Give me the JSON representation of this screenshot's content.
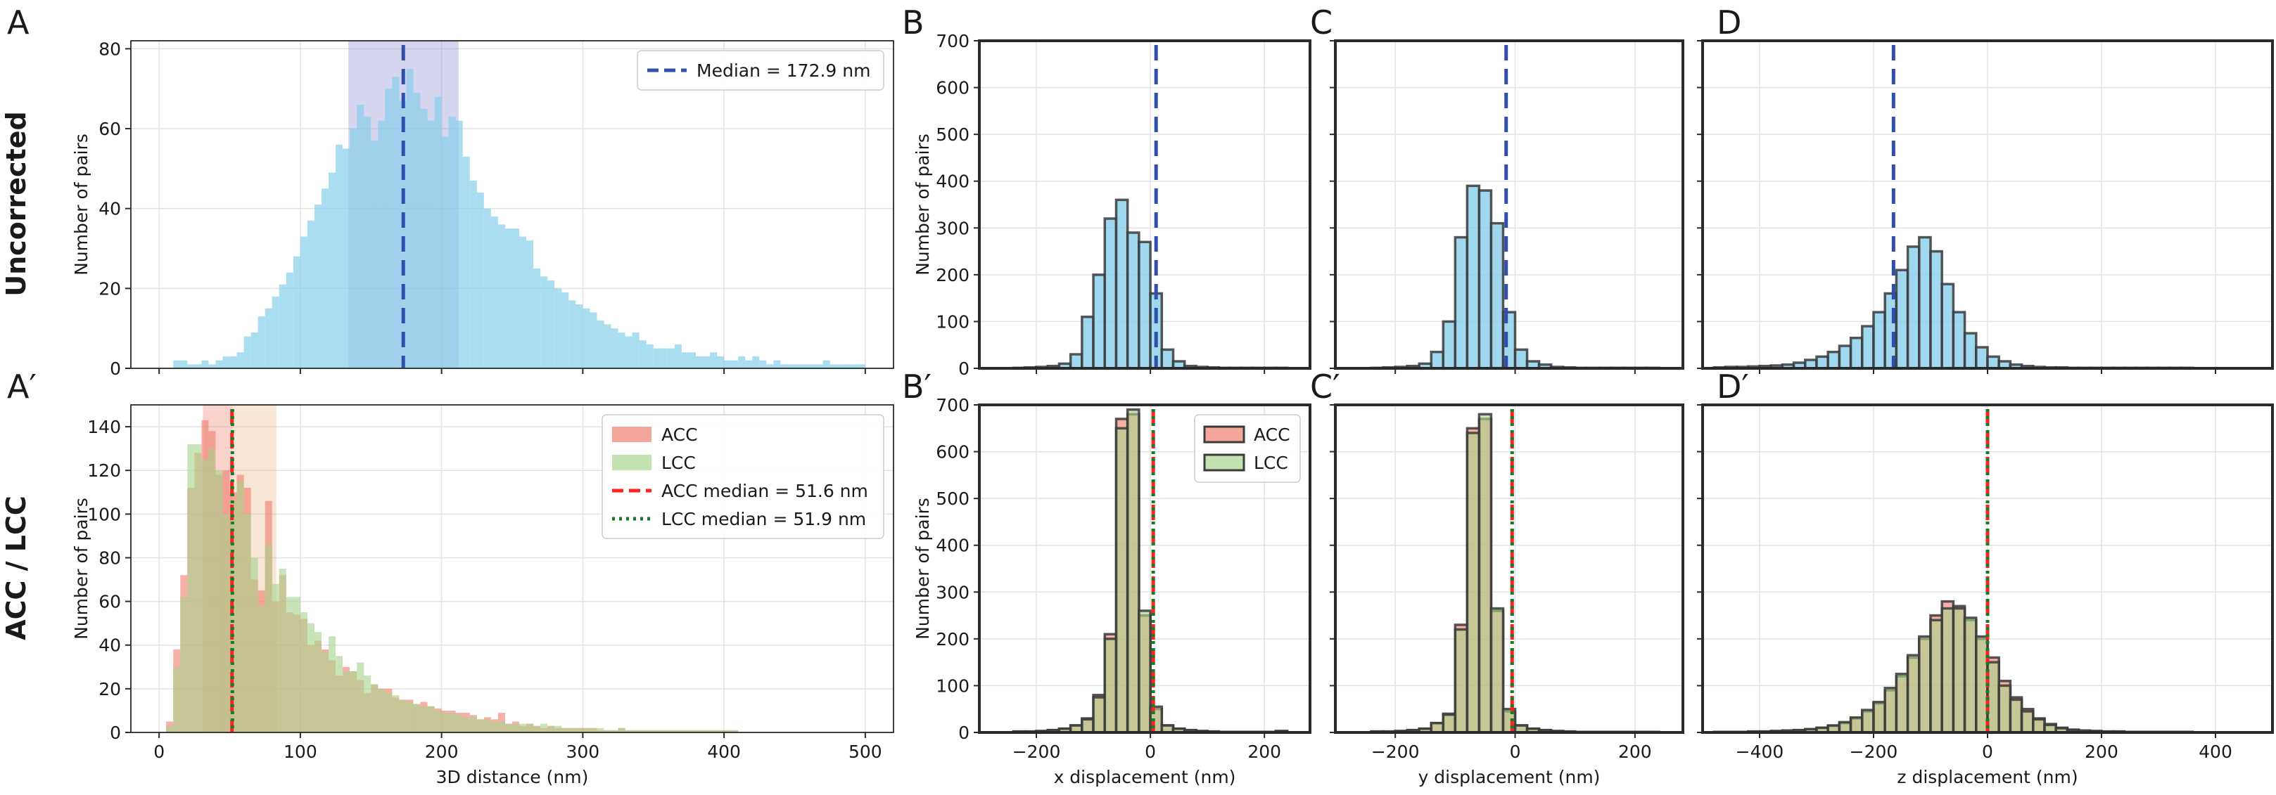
{
  "row_labels": {
    "top": "Uncorrected",
    "bottom": "ACC / LCC"
  },
  "panel_letters": {
    "A": "A",
    "B": "B",
    "C": "C",
    "D": "D",
    "A2": "A′",
    "B2": "B′",
    "C2": "C′",
    "D2": "D′"
  },
  "colors": {
    "uncorrected": "#87ceeb",
    "acc": "#f08070",
    "lcc": "#a8d48c",
    "overlap": "#b7b07a",
    "median_blue": "#2f4faa",
    "median_red": "#ff2020",
    "median_green": "#1a7a2a",
    "iqr_blue": "#8888cc",
    "iqr_orange": "#e8b48a",
    "edge": "#3a3a3a"
  },
  "chart_data": [
    {
      "id": "A",
      "type": "bar",
      "title": "",
      "xlabel": "",
      "ylabel": "Number of pairs",
      "xlim": [
        -20,
        520
      ],
      "ylim": [
        0,
        82
      ],
      "xticks": [
        0,
        100,
        200,
        300,
        400,
        500
      ],
      "yticks": [
        0,
        20,
        40,
        60,
        80
      ],
      "show_xtick_labels": false,
      "bin_width": 5,
      "series": [
        {
          "name": "Uncorrected",
          "color": "#87ceeb",
          "bin_start": 10,
          "values": [
            2,
            2,
            1,
            1,
            2,
            1,
            2,
            3,
            3,
            4,
            8,
            9,
            13,
            15,
            18,
            21,
            24,
            28,
            33,
            37,
            41,
            45,
            49,
            56,
            55,
            60,
            66,
            63,
            57,
            62,
            70,
            73,
            67,
            75,
            69,
            65,
            62,
            68,
            58,
            63,
            62,
            53,
            47,
            44,
            40,
            38,
            36,
            35,
            35,
            33,
            32,
            25,
            23,
            22,
            20,
            19,
            17,
            16,
            15,
            14,
            12,
            11,
            10,
            9,
            8,
            9,
            7,
            6,
            5,
            5,
            5,
            6,
            4,
            4,
            3,
            3,
            4,
            3,
            2,
            2,
            3,
            2,
            3,
            2,
            1,
            2,
            1,
            1,
            1,
            1,
            1,
            1,
            2,
            1,
            1,
            1,
            1,
            1
          ]
        }
      ],
      "vlines": [
        {
          "x": 172.9,
          "color": "#2f4faa",
          "style": "dashed"
        }
      ],
      "spans": [
        {
          "from": 134,
          "to": 212,
          "color": "#8888cc"
        }
      ],
      "legend": {
        "position": "top-right",
        "entries": [
          {
            "label": "Median = 172.9 nm",
            "kind": "line",
            "color": "#2f4faa",
            "style": "dashed"
          }
        ]
      }
    },
    {
      "id": "B",
      "type": "bar",
      "title": "",
      "xlabel": "",
      "ylabel": "Number of pairs",
      "xlim": [
        -300,
        280
      ],
      "ylim": [
        0,
        700
      ],
      "xticks": [
        -200,
        0,
        200
      ],
      "yticks": [
        0,
        100,
        200,
        300,
        400,
        500,
        600,
        700
      ],
      "show_xtick_labels": false,
      "bin_width": 20,
      "series": [
        {
          "name": "Uncorrected",
          "color": "#87ceeb",
          "bin_start": -240,
          "values": [
            1,
            2,
            3,
            5,
            10,
            30,
            110,
            200,
            320,
            360,
            290,
            270,
            160,
            40,
            15,
            5,
            3,
            2,
            1,
            1,
            1,
            1,
            1,
            1
          ]
        }
      ],
      "vlines": [
        {
          "x": 10,
          "color": "#2f4faa",
          "style": "dashed"
        }
      ],
      "spans": [],
      "legend": null
    },
    {
      "id": "C",
      "type": "bar",
      "title": "",
      "xlabel": "",
      "ylabel": "",
      "xlim": [
        -300,
        280
      ],
      "ylim": [
        0,
        700
      ],
      "xticks": [
        -200,
        0,
        200
      ],
      "yticks": [
        0,
        100,
        200,
        300,
        400,
        500,
        600,
        700
      ],
      "show_xtick_labels": false,
      "show_ytick_labels": false,
      "bin_width": 20,
      "series": [
        {
          "name": "Uncorrected",
          "color": "#87ceeb",
          "bin_start": -240,
          "values": [
            1,
            2,
            3,
            5,
            10,
            35,
            100,
            280,
            390,
            380,
            310,
            120,
            40,
            15,
            8,
            3,
            2,
            1,
            1,
            1,
            1,
            1,
            1,
            1
          ]
        }
      ],
      "vlines": [
        {
          "x": -15,
          "color": "#2f4faa",
          "style": "dashed"
        }
      ],
      "spans": [],
      "legend": null
    },
    {
      "id": "D",
      "type": "bar",
      "title": "",
      "xlabel": "",
      "ylabel": "",
      "xlim": [
        -500,
        500
      ],
      "ylim": [
        0,
        700
      ],
      "xticks": [
        -400,
        -200,
        0,
        200,
        400
      ],
      "yticks": [
        0,
        100,
        200,
        300,
        400,
        500,
        600,
        700
      ],
      "show_xtick_labels": false,
      "show_ytick_labels": false,
      "bin_width": 20,
      "series": [
        {
          "name": "Uncorrected",
          "color": "#87ceeb",
          "bin_start": -480,
          "values": [
            2,
            3,
            3,
            4,
            5,
            6,
            8,
            12,
            18,
            25,
            35,
            48,
            65,
            90,
            120,
            160,
            210,
            260,
            280,
            250,
            180,
            120,
            75,
            45,
            25,
            15,
            8,
            5,
            3,
            2,
            2,
            1,
            1,
            1,
            1,
            1,
            1,
            1,
            1,
            1,
            1,
            1
          ]
        }
      ],
      "vlines": [
        {
          "x": -165,
          "color": "#2f4faa",
          "style": "dashed"
        }
      ],
      "spans": [],
      "legend": null
    },
    {
      "id": "A2",
      "type": "bar",
      "title": "",
      "xlabel": "3D distance (nm)",
      "ylabel": "Number of pairs",
      "xlim": [
        -20,
        520
      ],
      "ylim": [
        0,
        150
      ],
      "xticks": [
        0,
        100,
        200,
        300,
        400,
        500
      ],
      "yticks": [
        0,
        20,
        40,
        60,
        80,
        100,
        120,
        140
      ],
      "show_xtick_labels": true,
      "bin_width": 5,
      "series": [
        {
          "name": "ACC",
          "color": "#f08070",
          "bin_start": 5,
          "values": [
            5,
            38,
            72,
            112,
            128,
            143,
            138,
            118,
            120,
            110,
            118,
            112,
            70,
            65,
            106,
            60,
            72,
            55,
            54,
            52,
            40,
            42,
            38,
            33,
            26,
            30,
            28,
            24,
            18,
            22,
            20,
            20,
            16,
            15,
            15,
            13,
            14,
            12,
            11,
            10,
            10,
            9,
            9,
            8,
            6,
            7,
            6,
            9,
            4,
            5,
            3,
            4,
            3,
            2,
            3,
            2,
            2,
            2,
            2,
            2,
            2,
            1,
            1,
            1,
            2,
            1,
            1,
            1,
            1,
            1,
            1,
            1,
            1,
            1,
            1,
            1,
            1,
            1,
            1,
            1,
            1
          ]
        },
        {
          "name": "LCC",
          "color": "#a8d48c",
          "bin_start": 5,
          "values": [
            3,
            30,
            62,
            132,
            132,
            125,
            130,
            120,
            100,
            106,
            115,
            100,
            80,
            58,
            86,
            68,
            75,
            62,
            62,
            55,
            50,
            46,
            37,
            44,
            35,
            28,
            28,
            32,
            26,
            22,
            20,
            18,
            17,
            15,
            14,
            13,
            12,
            12,
            10,
            9,
            9,
            8,
            7,
            7,
            6,
            6,
            5,
            5,
            4,
            4,
            4,
            4,
            3,
            4,
            3,
            3,
            2,
            2,
            2,
            2,
            2,
            2,
            1,
            1,
            2,
            1,
            1,
            1,
            1,
            1,
            1,
            1,
            1,
            1,
            1,
            1,
            1,
            1,
            1,
            1,
            1
          ]
        }
      ],
      "vlines": [
        {
          "x": 51.6,
          "color": "#ff2020",
          "style": "dashed"
        },
        {
          "x": 51.9,
          "color": "#1a7a2a",
          "style": "dotted"
        }
      ],
      "spans": [
        {
          "from": 31,
          "to": 52,
          "color": "#f08070"
        },
        {
          "from": 52,
          "to": 83,
          "color": "#e8b48a"
        }
      ],
      "legend": {
        "position": "top-right",
        "entries": [
          {
            "label": "ACC",
            "kind": "patch",
            "color": "#f08070"
          },
          {
            "label": "LCC",
            "kind": "patch",
            "color": "#a8d48c"
          },
          {
            "label": "ACC median = 51.6 nm",
            "kind": "line",
            "color": "#ff2020",
            "style": "dashed"
          },
          {
            "label": "LCC median = 51.9 nm",
            "kind": "line",
            "color": "#1a7a2a",
            "style": "dotted"
          }
        ]
      }
    },
    {
      "id": "B2",
      "type": "bar",
      "title": "",
      "xlabel": "x displacement (nm)",
      "ylabel": "Number of pairs",
      "xlim": [
        -300,
        280
      ],
      "ylim": [
        0,
        700
      ],
      "xticks": [
        -200,
        0,
        200
      ],
      "yticks": [
        0,
        100,
        200,
        300,
        400,
        500,
        600,
        700
      ],
      "show_xtick_labels": true,
      "bin_width": 20,
      "series": [
        {
          "name": "ACC",
          "color": "#f08070",
          "bin_start": -240,
          "values": [
            2,
            2,
            3,
            5,
            8,
            15,
            30,
            80,
            210,
            670,
            680,
            250,
            50,
            15,
            8,
            5,
            3,
            2,
            1,
            1,
            1,
            1,
            1,
            3
          ]
        },
        {
          "name": "LCC",
          "color": "#a8d48c",
          "bin_start": -240,
          "values": [
            2,
            2,
            3,
            5,
            8,
            15,
            28,
            75,
            200,
            650,
            690,
            260,
            55,
            15,
            8,
            5,
            3,
            2,
            1,
            1,
            1,
            1,
            1,
            3
          ]
        }
      ],
      "vlines": [
        {
          "x": 5,
          "color": "#ff2020",
          "style": "dashed"
        },
        {
          "x": 5,
          "color": "#1a7a2a",
          "style": "dotted"
        }
      ],
      "spans": [],
      "legend": {
        "position": "top-right",
        "entries": [
          {
            "label": "ACC",
            "kind": "patch",
            "color": "#f08070"
          },
          {
            "label": "LCC",
            "kind": "patch",
            "color": "#a8d48c"
          }
        ]
      }
    },
    {
      "id": "C2",
      "type": "bar",
      "title": "",
      "xlabel": "y displacement (nm)",
      "ylabel": "",
      "xlim": [
        -300,
        280
      ],
      "ylim": [
        0,
        700
      ],
      "xticks": [
        -200,
        0,
        200
      ],
      "yticks": [
        0,
        100,
        200,
        300,
        400,
        500,
        600,
        700
      ],
      "show_xtick_labels": true,
      "show_ytick_labels": false,
      "bin_width": 20,
      "series": [
        {
          "name": "ACC",
          "color": "#f08070",
          "bin_start": -240,
          "values": [
            2,
            2,
            3,
            5,
            8,
            20,
            40,
            230,
            650,
            670,
            260,
            45,
            15,
            8,
            5,
            3,
            2,
            1,
            1,
            1,
            1,
            1,
            1,
            1
          ]
        },
        {
          "name": "LCC",
          "color": "#a8d48c",
          "bin_start": -240,
          "values": [
            2,
            2,
            3,
            5,
            8,
            20,
            38,
            220,
            640,
            680,
            265,
            50,
            15,
            8,
            5,
            3,
            2,
            1,
            1,
            1,
            1,
            1,
            1,
            1
          ]
        }
      ],
      "vlines": [
        {
          "x": -5,
          "color": "#ff2020",
          "style": "dashed"
        },
        {
          "x": -5,
          "color": "#1a7a2a",
          "style": "dotted"
        }
      ],
      "spans": [],
      "legend": null
    },
    {
      "id": "D2",
      "type": "bar",
      "title": "",
      "xlabel": "z displacement (nm)",
      "ylabel": "",
      "xlim": [
        -500,
        500
      ],
      "ylim": [
        0,
        700
      ],
      "xticks": [
        -400,
        -200,
        0,
        200,
        400
      ],
      "yticks": [
        0,
        100,
        200,
        300,
        400,
        500,
        600,
        700
      ],
      "show_xtick_labels": true,
      "show_ytick_labels": false,
      "bin_width": 20,
      "series": [
        {
          "name": "ACC",
          "color": "#f08070",
          "bin_start": -480,
          "values": [
            1,
            1,
            1,
            2,
            2,
            3,
            4,
            5,
            7,
            10,
            14,
            20,
            30,
            45,
            62,
            90,
            120,
            160,
            200,
            250,
            280,
            270,
            240,
            200,
            160,
            110,
            75,
            50,
            30,
            18,
            10,
            6,
            4,
            3,
            2,
            2,
            1,
            1,
            1,
            1,
            1,
            1
          ]
        },
        {
          "name": "LCC",
          "color": "#a8d48c",
          "bin_start": -480,
          "values": [
            1,
            1,
            1,
            2,
            2,
            3,
            4,
            5,
            7,
            10,
            15,
            22,
            32,
            48,
            65,
            95,
            125,
            165,
            205,
            240,
            265,
            265,
            245,
            205,
            150,
            100,
            70,
            45,
            28,
            16,
            9,
            5,
            4,
            3,
            2,
            2,
            1,
            1,
            1,
            1,
            1,
            1
          ]
        }
      ],
      "vlines": [
        {
          "x": 0,
          "color": "#ff2020",
          "style": "dashed"
        },
        {
          "x": 0,
          "color": "#1a7a2a",
          "style": "dotted"
        }
      ],
      "spans": [],
      "legend": null
    }
  ]
}
